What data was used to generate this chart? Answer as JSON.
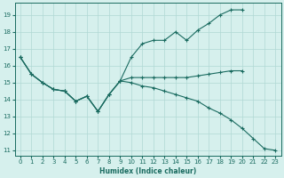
{
  "xlabel": "Humidex (Indice chaleur)",
  "bg_color": "#d6f0ed",
  "grid_color": "#b0d8d4",
  "line_color": "#1a6b60",
  "xlim": [
    -0.5,
    23.5
  ],
  "ylim": [
    10.7,
    19.7
  ],
  "yticks": [
    11,
    12,
    13,
    14,
    15,
    16,
    17,
    18,
    19
  ],
  "xticks": [
    0,
    1,
    2,
    3,
    4,
    5,
    6,
    7,
    8,
    9,
    10,
    11,
    12,
    13,
    14,
    15,
    16,
    17,
    18,
    19,
    20,
    21,
    22,
    23
  ],
  "line1_x": [
    0,
    1,
    2,
    3,
    4,
    5,
    6,
    7,
    8,
    9,
    10,
    11,
    12,
    13,
    14,
    15,
    16,
    17,
    18,
    19,
    20
  ],
  "line1_y": [
    16.5,
    15.5,
    15.0,
    14.6,
    14.5,
    13.9,
    14.2,
    13.3,
    14.3,
    15.1,
    15.3,
    15.3,
    15.3,
    15.3,
    15.3,
    15.3,
    15.4,
    15.5,
    15.6,
    15.7,
    15.7
  ],
  "line2_x": [
    0,
    1,
    2,
    3,
    4,
    5,
    6,
    7,
    8,
    9,
    10,
    11,
    12,
    13,
    14,
    15,
    16,
    17,
    18,
    19,
    20
  ],
  "line2_y": [
    16.5,
    15.5,
    15.0,
    14.6,
    14.5,
    13.9,
    14.2,
    13.3,
    14.3,
    15.1,
    16.5,
    17.3,
    17.5,
    17.5,
    18.0,
    17.5,
    18.1,
    18.5,
    19.0,
    19.3,
    19.3
  ],
  "line3_x": [
    0,
    1,
    2,
    3,
    4,
    5,
    6,
    7,
    8,
    9,
    10,
    11,
    12,
    13,
    14,
    15,
    16,
    17,
    18,
    19,
    20,
    21,
    22,
    23
  ],
  "line3_y": [
    16.5,
    15.5,
    15.0,
    14.6,
    14.5,
    13.9,
    14.2,
    13.3,
    14.3,
    15.1,
    15.0,
    14.8,
    14.7,
    14.5,
    14.3,
    14.1,
    13.9,
    13.5,
    13.2,
    12.8,
    12.3,
    11.7,
    11.1,
    11.0
  ]
}
